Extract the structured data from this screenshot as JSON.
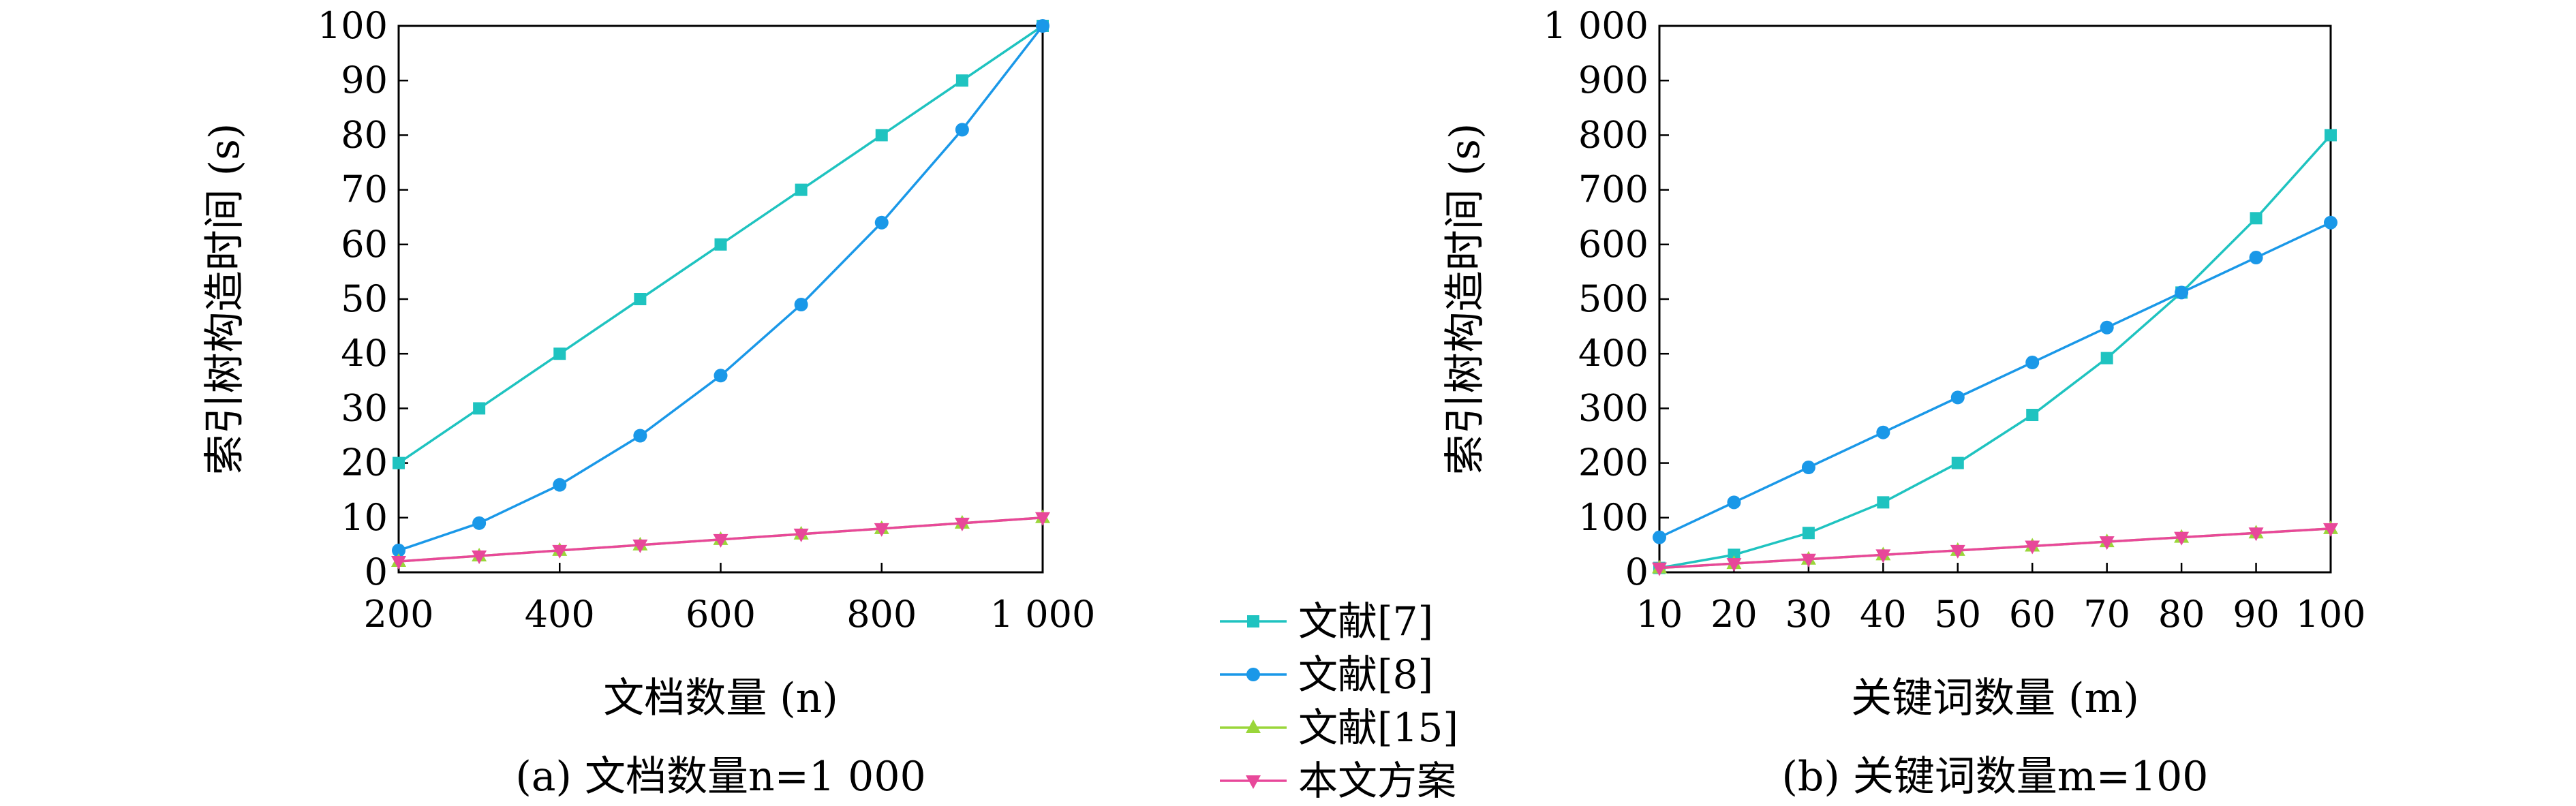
{
  "chart_data": [
    {
      "type": "line",
      "panel_caption": "(a) 文档数量n=1 000",
      "xlabel": "文档数量 (n)",
      "ylabel": "索引树构造时间 (s)",
      "x": [
        200,
        300,
        400,
        500,
        600,
        700,
        800,
        900,
        1000
      ],
      "xticks": [
        200,
        400,
        600,
        800,
        1000
      ],
      "xtick_labels": [
        "200",
        "400",
        "600",
        "800",
        "1 000"
      ],
      "xlim": [
        200,
        1000
      ],
      "ylim": [
        0,
        100
      ],
      "yticks": [
        0,
        10,
        20,
        30,
        40,
        50,
        60,
        70,
        80,
        90,
        100
      ],
      "ytick_labels": [
        "0",
        "10",
        "20",
        "30",
        "40",
        "50",
        "60",
        "70",
        "80",
        "90",
        "100"
      ],
      "series": [
        {
          "name": "文献[7]",
          "values": [
            20,
            30,
            40,
            50,
            60,
            70,
            80,
            90,
            100
          ]
        },
        {
          "name": "文献[8]",
          "values": [
            4,
            9,
            16,
            25,
            36,
            49,
            64,
            81,
            100
          ]
        },
        {
          "name": "文献[15]",
          "values": [
            2,
            3,
            4,
            5,
            6,
            7,
            8,
            9,
            10
          ]
        },
        {
          "name": "本文方案",
          "values": [
            2,
            3,
            4,
            5,
            6,
            7,
            8,
            9,
            10
          ]
        }
      ]
    },
    {
      "type": "line",
      "panel_caption": "(b) 关键词数量m=100",
      "xlabel": "关键词数量 (m)",
      "ylabel": "索引树构造时间 (s)",
      "x": [
        10,
        20,
        30,
        40,
        50,
        60,
        70,
        80,
        90,
        100
      ],
      "xticks": [
        10,
        20,
        30,
        40,
        50,
        60,
        70,
        80,
        90,
        100
      ],
      "xtick_labels": [
        "10",
        "20",
        "30",
        "40",
        "50",
        "60",
        "70",
        "80",
        "90",
        "100"
      ],
      "xlim": [
        10,
        100
      ],
      "ylim": [
        0,
        1000
      ],
      "yticks": [
        0,
        100,
        200,
        300,
        400,
        500,
        600,
        700,
        800,
        900,
        1000
      ],
      "ytick_labels": [
        "0",
        "100",
        "200",
        "300",
        "400",
        "500",
        "600",
        "700",
        "800",
        "900",
        "1 000"
      ],
      "series": [
        {
          "name": "文献[7]",
          "values": [
            8,
            32,
            72,
            128,
            200,
            288,
            392,
            512,
            648,
            800
          ]
        },
        {
          "name": "文献[8]",
          "values": [
            64,
            128,
            192,
            256,
            320,
            384,
            448,
            512,
            576,
            640
          ]
        },
        {
          "name": "文献[15]",
          "values": [
            8,
            16,
            24,
            32,
            40,
            48,
            56,
            64,
            72,
            80
          ]
        },
        {
          "name": "本文方案",
          "values": [
            8,
            16,
            24,
            32,
            40,
            48,
            56,
            64,
            72,
            80
          ]
        }
      ]
    }
  ],
  "legend": {
    "placement": "bottom-center, between panels",
    "items": [
      {
        "label": "文献[7]",
        "color": "#1fc3c0",
        "marker": "square"
      },
      {
        "label": "文献[8]",
        "color": "#1a98e8",
        "marker": "circle"
      },
      {
        "label": "文献[15]",
        "color": "#9ad63a",
        "marker": "triangle-up"
      },
      {
        "label": "本文方案",
        "color": "#e8489a",
        "marker": "triangle-down"
      }
    ]
  }
}
